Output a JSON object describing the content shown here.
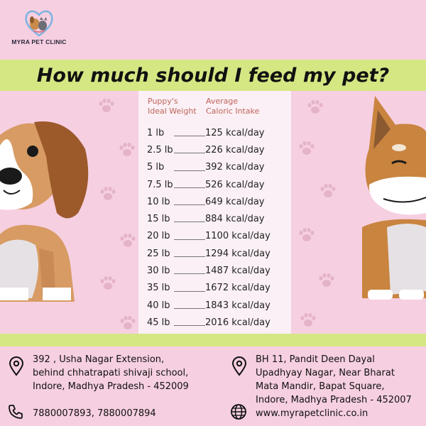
{
  "brand": {
    "name": "MYRA PET CLINIC"
  },
  "banner": {
    "title": "How much should I feed my pet?"
  },
  "table": {
    "header_weight_line1": "Puppy's",
    "header_weight_line2": "Ideal Weight",
    "header_calories_line1": "Average",
    "header_calories_line2": "Caloric Intake",
    "rows": [
      {
        "weight": "1 lb",
        "calories": "125 kcal/day"
      },
      {
        "weight": "2.5 lb",
        "calories": "226 kcal/day"
      },
      {
        "weight": "5 lb",
        "calories": "392 kcal/day"
      },
      {
        "weight": "7.5 lb",
        "calories": "526 kcal/day"
      },
      {
        "weight": "10 lb",
        "calories": "649 kcal/day"
      },
      {
        "weight": "15 lb",
        "calories": "884 kcal/day"
      },
      {
        "weight": "20 lb",
        "calories": "1100 kcal/day"
      },
      {
        "weight": "25 lb",
        "calories": "1294 kcal/day"
      },
      {
        "weight": "30 lb",
        "calories": "1487 kcal/day"
      },
      {
        "weight": "35 lb",
        "calories": "1672 kcal/day"
      },
      {
        "weight": "40 lb",
        "calories": "1843 kcal/day"
      },
      {
        "weight": "45 lb",
        "calories": "2016 kcal/day"
      }
    ]
  },
  "contact": {
    "address1": [
      "392 , Usha Nagar Extension,",
      "behind chhatrapati shivaji school,",
      "Indore, Madhya Pradesh - 452009"
    ],
    "address2": [
      "BH 11,  Pandit Deen Dayal",
      "Upadhyay Nagar, Near Bharat",
      "Mata Mandir, Bapat Square,",
      "Indore, Madhya Pradesh - 452007"
    ],
    "phone": "7880007893, 7880007894",
    "website": "www.myrapetclinic.co.in"
  },
  "colors": {
    "background": "#f6cfe1",
    "banner": "#d5e783",
    "table_panel": "#faf0f5",
    "header_text": "#c0655a"
  },
  "icons": [
    "location-pin-icon",
    "phone-icon",
    "globe-icon",
    "paw-icon"
  ]
}
